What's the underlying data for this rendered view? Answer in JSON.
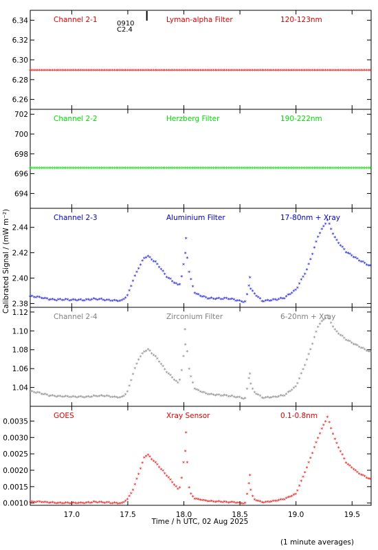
{
  "flare_marker": {
    "label_top": "0910",
    "label_bottom": "C2.4",
    "time": 17.67
  },
  "x_axis": {
    "label": "Time / h UTC, 02 Aug 2025",
    "range": [
      16.63,
      19.67
    ],
    "ticks": [
      17.0,
      17.5,
      18.0,
      18.5,
      19.0,
      19.5
    ],
    "tick_labels": [
      "17.0",
      "17.5",
      "18.0",
      "18.5",
      "19.0",
      "19.5"
    ]
  },
  "y_axis_label": "Calibrated Signal / (mW m⁻²)",
  "footnote": "(1 minute averages)",
  "chart_data": [
    {
      "type": "scatter",
      "channel": "Channel 2-1",
      "filter": "Lyman-alpha Filter",
      "band": "120-123nm",
      "color": "#e00000",
      "ylim": [
        6.25,
        6.35
      ],
      "yticks": [
        6.26,
        6.28,
        6.3,
        6.32,
        6.34
      ],
      "ytick_labels": [
        "6.26",
        "6.28",
        "6.30",
        "6.32",
        "6.34"
      ],
      "x_anchors": [
        16.63,
        19.67
      ],
      "y_anchors": [
        6.289,
        6.289
      ],
      "noise": 0
    },
    {
      "type": "scatter",
      "channel": "Channel 2-2",
      "filter": "Herzberg Filter",
      "band": "190-222nm",
      "color": "#00dd00",
      "ylim": [
        692.5,
        702.5
      ],
      "yticks": [
        694,
        696,
        698,
        700,
        702
      ],
      "ytick_labels": [
        "694",
        "696",
        "698",
        "700",
        "702"
      ],
      "x_anchors": [
        16.63,
        19.67
      ],
      "y_anchors": [
        696.5,
        696.5
      ],
      "noise": 0
    },
    {
      "type": "scatter",
      "channel": "Channel 2-3",
      "filter": "Aluminium Filter",
      "band": "17-80nm + Xray",
      "color": "#0000cc",
      "ylim": [
        2.377,
        2.455
      ],
      "yticks": [
        2.38,
        2.4,
        2.42,
        2.44
      ],
      "ytick_labels": [
        "2.38",
        "2.40",
        "2.42",
        "2.44"
      ],
      "x_anchors": [
        16.63,
        16.8,
        17.0,
        17.2,
        17.3,
        17.45,
        17.5,
        17.55,
        17.6,
        17.65,
        17.68,
        17.75,
        17.85,
        17.95,
        17.97,
        18.0,
        18.02,
        18.05,
        18.1,
        18.2,
        18.4,
        18.55,
        18.58,
        18.62,
        18.7,
        18.9,
        19.0,
        19.1,
        19.2,
        19.28,
        19.35,
        19.45,
        19.55,
        19.67
      ],
      "y_anchors": [
        2.385,
        2.383,
        2.382,
        2.383,
        2.382,
        2.382,
        2.386,
        2.398,
        2.408,
        2.416,
        2.417,
        2.412,
        2.4,
        2.394,
        2.396,
        2.412,
        2.423,
        2.402,
        2.387,
        2.384,
        2.383,
        2.381,
        2.394,
        2.388,
        2.381,
        2.384,
        2.39,
        2.407,
        2.433,
        2.445,
        2.431,
        2.42,
        2.414,
        2.409
      ],
      "noise": 0.0008,
      "spikes": [
        [
          18.02,
          2.431
        ],
        [
          18.59,
          2.4
        ]
      ]
    },
    {
      "type": "scatter",
      "channel": "Channel 2-4",
      "filter": "Zirconium Filter",
      "band": "6-20nm + Xray",
      "color": "#808080",
      "ylim": [
        1.02,
        1.125
      ],
      "yticks": [
        1.04,
        1.06,
        1.08,
        1.1,
        1.12
      ],
      "ytick_labels": [
        "1.04",
        "1.06",
        "1.08",
        "1.10",
        "1.12"
      ],
      "x_anchors": [
        16.63,
        16.8,
        17.0,
        17.2,
        17.3,
        17.45,
        17.5,
        17.55,
        17.6,
        17.65,
        17.68,
        17.75,
        17.85,
        17.95,
        17.97,
        18.0,
        18.02,
        18.05,
        18.1,
        18.2,
        18.4,
        18.55,
        18.58,
        18.62,
        18.7,
        18.9,
        19.0,
        19.1,
        19.2,
        19.28,
        19.35,
        19.45,
        19.55,
        19.67
      ],
      "y_anchors": [
        1.035,
        1.031,
        1.029,
        1.03,
        1.03,
        1.029,
        1.035,
        1.055,
        1.07,
        1.078,
        1.08,
        1.072,
        1.055,
        1.044,
        1.05,
        1.075,
        1.09,
        1.055,
        1.037,
        1.033,
        1.03,
        1.028,
        1.05,
        1.035,
        1.028,
        1.031,
        1.04,
        1.07,
        1.105,
        1.115,
        1.1,
        1.09,
        1.083,
        1.077
      ],
      "noise": 0.0009,
      "spikes": [
        [
          18.01,
          1.101
        ],
        [
          18.59,
          1.054
        ]
      ]
    },
    {
      "type": "scatter",
      "channel": "GOES",
      "filter": "Xray Sensor",
      "band": "0.1-0.8nm",
      "color": "#e00000",
      "ylim": [
        0.00093,
        0.00395
      ],
      "yticks": [
        0.001,
        0.0015,
        0.002,
        0.0025,
        0.003,
        0.0035
      ],
      "ytick_labels": [
        "0.0010",
        "0.0015",
        "0.0020",
        "0.0025",
        "0.0030",
        "0.0035"
      ],
      "x_anchors": [
        16.63,
        16.8,
        17.0,
        17.2,
        17.3,
        17.45,
        17.5,
        17.55,
        17.6,
        17.65,
        17.68,
        17.75,
        17.85,
        17.95,
        17.97,
        18.0,
        18.02,
        18.05,
        18.1,
        18.2,
        18.4,
        18.55,
        18.58,
        18.62,
        18.7,
        18.9,
        19.0,
        19.1,
        19.2,
        19.28,
        19.35,
        19.45,
        19.55,
        19.67
      ],
      "y_anchors": [
        0.00101,
        0.001,
        0.00097,
        0.00101,
        0.00099,
        0.00098,
        0.0011,
        0.0014,
        0.0019,
        0.0024,
        0.00245,
        0.0022,
        0.0018,
        0.0014,
        0.0015,
        0.0023,
        0.0027,
        0.0013,
        0.0011,
        0.00105,
        0.001,
        0.00098,
        0.0016,
        0.0011,
        0.00099,
        0.0011,
        0.00125,
        0.0021,
        0.003,
        0.0036,
        0.0029,
        0.0022,
        0.0019,
        0.0017
      ],
      "noise": 2e-05,
      "spikes": [
        [
          18.02,
          0.00313
        ],
        [
          18.59,
          0.00183
        ]
      ]
    }
  ]
}
